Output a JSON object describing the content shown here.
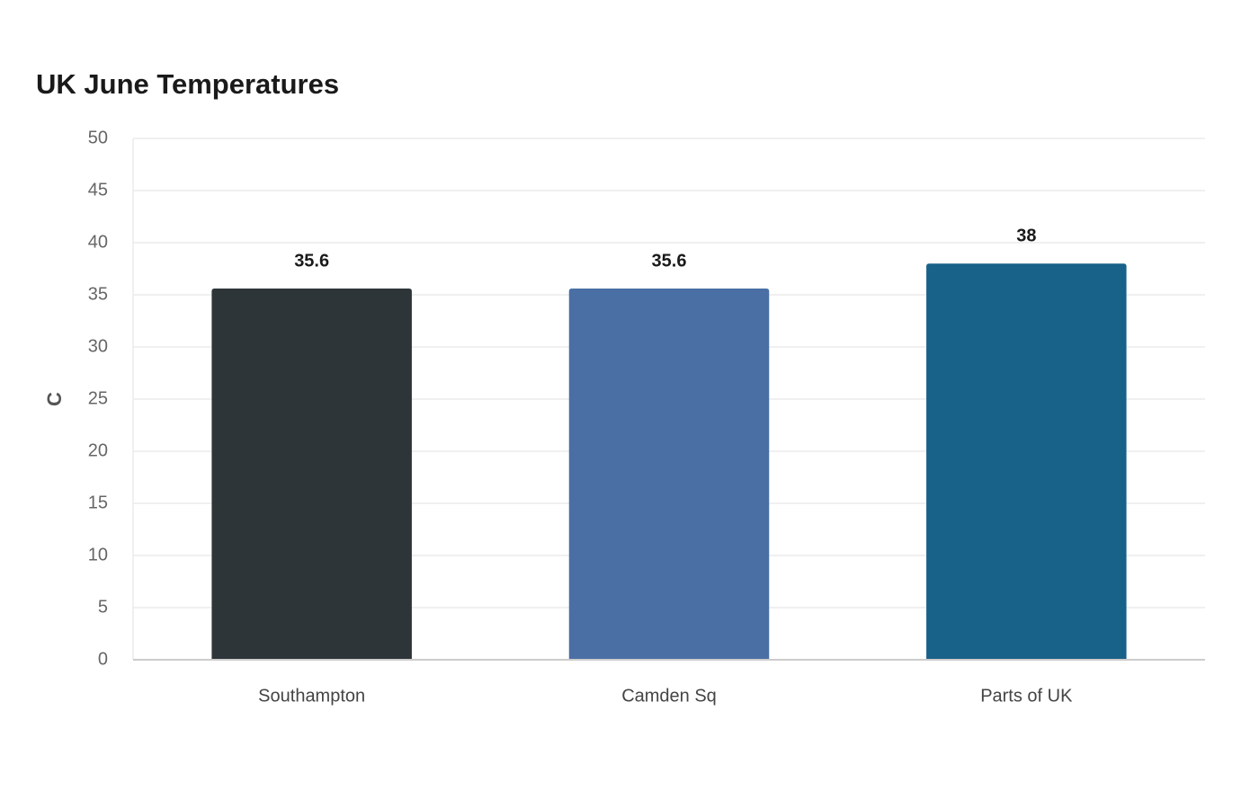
{
  "chart_data": {
    "type": "bar",
    "title": "UK June Temperatures",
    "y_label": "C",
    "categories": [
      "Southampton",
      "Camden Sq",
      "Parts of UK"
    ],
    "values": [
      35.6,
      35.6,
      38
    ],
    "colors": [
      "#2e3538",
      "#4a6fa5",
      "#186189"
    ],
    "ylim": [
      0,
      50
    ],
    "yticks": [
      0,
      5,
      10,
      15,
      20,
      25,
      30,
      35,
      40,
      45,
      50
    ],
    "grid": true
  }
}
